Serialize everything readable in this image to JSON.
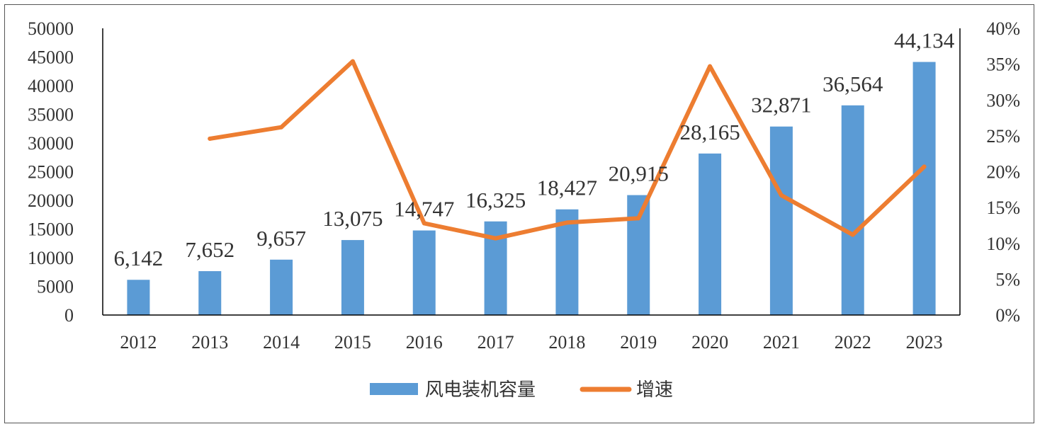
{
  "chart_data": {
    "type": "bar",
    "title": "",
    "xlabel": "",
    "ylabel": "",
    "y2label": "",
    "categories": [
      "2012",
      "2013",
      "2014",
      "2015",
      "2016",
      "2017",
      "2018",
      "2019",
      "2020",
      "2021",
      "2022",
      "2023"
    ],
    "series": [
      {
        "name": "风电装机容量",
        "type": "bar",
        "axis": "left",
        "values": [
          6142,
          7652,
          9657,
          13075,
          14747,
          16325,
          18427,
          20915,
          28165,
          32871,
          36564,
          44134
        ],
        "labels": [
          "6,142",
          "7,652",
          "9,657",
          "13,075",
          "14,747",
          "16,325",
          "18,427",
          "20,915",
          "28,165",
          "32,871",
          "36,564",
          "44,134"
        ]
      },
      {
        "name": "增速",
        "type": "line",
        "axis": "right",
        "values": [
          null,
          24.6,
          26.2,
          35.4,
          12.8,
          10.7,
          12.9,
          13.5,
          34.7,
          16.7,
          11.2,
          20.7
        ]
      }
    ],
    "ylim": [
      0,
      50000
    ],
    "yticks": [
      "0",
      "5000",
      "10000",
      "15000",
      "20000",
      "25000",
      "30000",
      "35000",
      "40000",
      "45000",
      "50000"
    ],
    "y2lim": [
      0,
      40
    ],
    "y2ticks": [
      "0%",
      "5%",
      "10%",
      "15%",
      "20%",
      "25%",
      "30%",
      "35%",
      "40%"
    ],
    "grid": false,
    "legend_position": "bottom",
    "colors": {
      "bar": "#5B9BD5",
      "line": "#ED7D31",
      "axis": "#000000"
    }
  }
}
